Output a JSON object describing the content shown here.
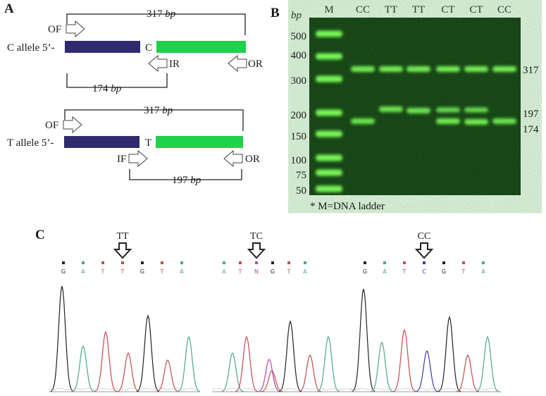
{
  "panels": {
    "a": "A",
    "b": "B",
    "c": "C"
  },
  "panel_a": {
    "c_allele": {
      "label": "C allele 5’-",
      "base": "C",
      "outer_size": "317",
      "inner_size": "174",
      "outer_forward": "OF",
      "inner_reverse": "IR",
      "outer_reverse": "OR"
    },
    "t_allele": {
      "label": "T allele 5’-",
      "base": "T",
      "outer_size": "317",
      "inner_size": "197",
      "outer_forward": "OF",
      "inner_forward": "IF",
      "outer_reverse": "OR"
    },
    "unit": "bp",
    "colors": {
      "upstream": "#2e2b6e",
      "downstream": "#1fd14b"
    }
  },
  "panel_b": {
    "unit_label": "bp",
    "footnote": "* M=DNA ladder",
    "lanes": [
      "M",
      "CC",
      "TT",
      "TT",
      "CT",
      "CT",
      "CC"
    ],
    "ladder_labels": [
      "500",
      "400",
      "300",
      "200",
      "150",
      "100",
      "75",
      "50"
    ],
    "band_labels": [
      "317",
      "197",
      "174"
    ],
    "gel_background": "#0b2a0a",
    "band_color": "#7dff5a"
  },
  "panel_c": {
    "groups": [
      {
        "genotype": "TT",
        "bases": [
          "G",
          "A",
          "T",
          "T",
          "G",
          "T",
          "A"
        ],
        "marked_index": 3
      },
      {
        "genotype": "TC",
        "bases": [
          "A",
          "T",
          "N",
          "G",
          "T",
          "A"
        ],
        "marked_index": 2
      },
      {
        "genotype": "CC",
        "bases": [
          "G",
          "A",
          "T",
          "C",
          "G",
          "T",
          "A"
        ],
        "marked_index": 3
      }
    ],
    "trace_colors": {
      "G": "#222222",
      "A": "#4aa88c",
      "T": "#c94a4a",
      "C": "#3a3ab0",
      "N": "#b04ab0"
    }
  }
}
